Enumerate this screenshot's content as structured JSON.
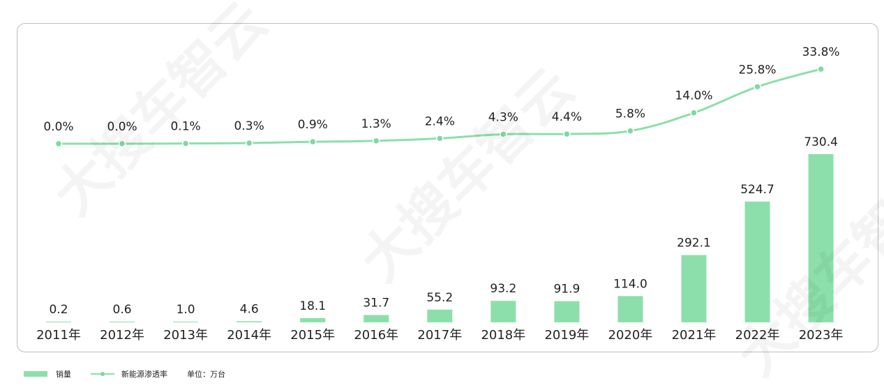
{
  "chart_data": {
    "type": "bar",
    "categories": [
      "2011年",
      "2012年",
      "2013年",
      "2014年",
      "2015年",
      "2016年",
      "2017年",
      "2018年",
      "2019年",
      "2020年",
      "2021年",
      "2022年",
      "2023年"
    ],
    "series": [
      {
        "name": "销量",
        "type": "bar",
        "values": [
          0.2,
          0.6,
          1.0,
          4.6,
          18.1,
          31.7,
          55.2,
          93.2,
          91.9,
          114.0,
          292.1,
          524.7,
          730.4
        ],
        "labels": [
          "0.2",
          "0.6",
          "1.0",
          "4.6",
          "18.1",
          "31.7",
          "55.2",
          "93.2",
          "91.9",
          "114.0",
          "292.1",
          "524.7",
          "730.4"
        ]
      },
      {
        "name": "新能源渗透率",
        "type": "line",
        "values": [
          0.0,
          0.0,
          0.1,
          0.3,
          0.9,
          1.3,
          2.4,
          4.3,
          4.4,
          5.8,
          14.0,
          25.8,
          33.8
        ],
        "labels": [
          "0.0%",
          "0.0%",
          "0.1%",
          "0.3%",
          "0.9%",
          "1.3%",
          "2.4%",
          "4.3%",
          "4.4%",
          "5.8%",
          "14.0%",
          "25.8%",
          "33.8%"
        ]
      }
    ],
    "unit_note": "单位：万台",
    "legend_position": "bottom-left",
    "grid": false,
    "colors": {
      "bar": "#8cdfab",
      "line": "#8cdfab",
      "marker": "#7dd9a0"
    }
  },
  "watermark": "大搜车智云"
}
